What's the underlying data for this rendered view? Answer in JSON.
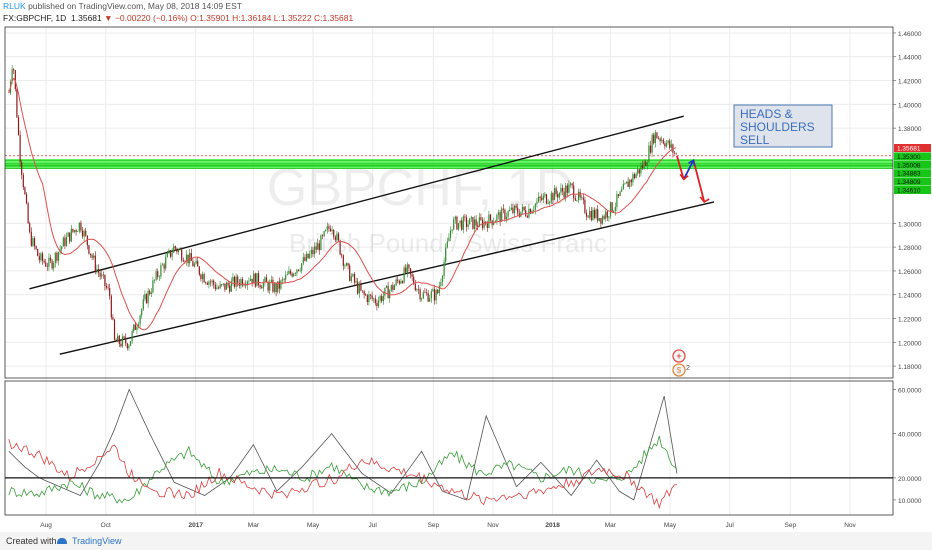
{
  "header": {
    "author": "RLUK",
    "published": "published on TradingView.com, May 08, 2018 14:09 EST",
    "symbol": "FX:GBPCHF, 1D",
    "price": "1.35681",
    "change": "−0.00220 (−0.16%)",
    "open": "O:1.35901",
    "high": "H:1.36184",
    "low": "L:1.35222",
    "close": "C:1.35681"
  },
  "watermark": {
    "ticker": "GBPCHF, 1D",
    "name": "British Pound / Swiss Franc"
  },
  "annotation": {
    "lines": [
      "HEADS &",
      "SHOULDERS",
      "SELL"
    ]
  },
  "badges": {
    "count": "2"
  },
  "footer": {
    "created_with": "Created with",
    "brand": "TradingView"
  },
  "colors": {
    "candle_up": "#2e8b2e",
    "candle_down": "#8b1a1a",
    "ma": "#e05050",
    "support_zone": "#33ee33",
    "price_label": "#e03030",
    "adx": "#555555",
    "di_plus": "#3aa03a",
    "di_minus": "#e04040"
  },
  "chart_data": [
    {
      "type": "candlestick",
      "title": "FX:GBPCHF, 1D",
      "x_tick_labels": [
        "Aug",
        "Oct",
        "2017",
        "Mar",
        "May",
        "Jul",
        "Sep",
        "Nov",
        "2018",
        "Mar",
        "May",
        "Jul",
        "Sep",
        "Nov"
      ],
      "y_tick_labels": [
        "1.18000",
        "1.20000",
        "1.22000",
        "1.24000",
        "1.26000",
        "1.28000",
        "1.30000",
        "1.38000",
        "1.40000",
        "1.42000",
        "1.44000",
        "1.46000"
      ],
      "ylim": [
        1.17,
        1.465
      ],
      "grid": true,
      "price_labels": [
        {
          "value": "1.35681",
          "kind": "last"
        },
        {
          "value": "1.35300",
          "kind": "level"
        },
        {
          "value": "1.35008",
          "kind": "level"
        },
        {
          "value": "1.34883",
          "kind": "level"
        },
        {
          "value": "1.34809",
          "kind": "level"
        },
        {
          "value": "1.34610",
          "kind": "level"
        }
      ],
      "support_levels": [
        1.353,
        1.35,
        1.3488,
        1.3481,
        1.3461
      ],
      "channel": {
        "upper": [
          {
            "x": "2016-07",
            "y": 1.245
          },
          {
            "x": "2018-05",
            "y": 1.39
          }
        ],
        "lower": [
          {
            "x": "2016-08",
            "y": 1.19
          },
          {
            "x": "2018-06",
            "y": 1.318
          }
        ]
      },
      "close_path": [
        {
          "x": "2016-06-24",
          "y": 1.41
        },
        {
          "x": "2016-06-28",
          "y": 1.44
        },
        {
          "x": "2016-07-05",
          "y": 1.36
        },
        {
          "x": "2016-07-15",
          "y": 1.29
        },
        {
          "x": "2016-07-25",
          "y": 1.27
        },
        {
          "x": "2016-08-05",
          "y": 1.265
        },
        {
          "x": "2016-08-20",
          "y": 1.285
        },
        {
          "x": "2016-09-05",
          "y": 1.3
        },
        {
          "x": "2016-09-20",
          "y": 1.265
        },
        {
          "x": "2016-10-05",
          "y": 1.24
        },
        {
          "x": "2016-10-10",
          "y": 1.2
        },
        {
          "x": "2016-10-25",
          "y": 1.2
        },
        {
          "x": "2016-11-10",
          "y": 1.235
        },
        {
          "x": "2016-11-25",
          "y": 1.26
        },
        {
          "x": "2016-12-10",
          "y": 1.28
        },
        {
          "x": "2016-12-25",
          "y": 1.27
        },
        {
          "x": "2017-01-10",
          "y": 1.255
        },
        {
          "x": "2017-01-25",
          "y": 1.245
        },
        {
          "x": "2017-02-10",
          "y": 1.25
        },
        {
          "x": "2017-02-25",
          "y": 1.255
        },
        {
          "x": "2017-03-10",
          "y": 1.25
        },
        {
          "x": "2017-03-25",
          "y": 1.245
        },
        {
          "x": "2017-04-10",
          "y": 1.26
        },
        {
          "x": "2017-04-25",
          "y": 1.27
        },
        {
          "x": "2017-05-10",
          "y": 1.285
        },
        {
          "x": "2017-05-20",
          "y": 1.3
        },
        {
          "x": "2017-06-05",
          "y": 1.26
        },
        {
          "x": "2017-06-20",
          "y": 1.24
        },
        {
          "x": "2017-07-05",
          "y": 1.235
        },
        {
          "x": "2017-07-20",
          "y": 1.245
        },
        {
          "x": "2017-08-05",
          "y": 1.26
        },
        {
          "x": "2017-08-20",
          "y": 1.24
        },
        {
          "x": "2017-09-05",
          "y": 1.24
        },
        {
          "x": "2017-09-20",
          "y": 1.3
        },
        {
          "x": "2017-10-05",
          "y": 1.3
        },
        {
          "x": "2017-10-20",
          "y": 1.3
        },
        {
          "x": "2017-11-05",
          "y": 1.305
        },
        {
          "x": "2017-11-20",
          "y": 1.31
        },
        {
          "x": "2017-12-05",
          "y": 1.31
        },
        {
          "x": "2017-12-20",
          "y": 1.32
        },
        {
          "x": "2018-01-05",
          "y": 1.325
        },
        {
          "x": "2018-01-20",
          "y": 1.33
        },
        {
          "x": "2018-02-05",
          "y": 1.31
        },
        {
          "x": "2018-02-20",
          "y": 1.305
        },
        {
          "x": "2018-03-05",
          "y": 1.315
        },
        {
          "x": "2018-03-20",
          "y": 1.335
        },
        {
          "x": "2018-04-05",
          "y": 1.35
        },
        {
          "x": "2018-04-15",
          "y": 1.375
        },
        {
          "x": "2018-04-25",
          "y": 1.37
        },
        {
          "x": "2018-05-08",
          "y": 1.3568
        }
      ],
      "projection": [
        {
          "x": "2018-05-08",
          "y": 1.3568
        },
        {
          "x": "2018-05-15",
          "y": 1.337
        },
        {
          "x": "2018-05-25",
          "y": 1.353
        },
        {
          "x": "2018-06-05",
          "y": 1.318
        }
      ]
    },
    {
      "type": "line",
      "title": "",
      "y_tick_labels": [
        "10.0000",
        "20.0000",
        "40.0000",
        "60.0000"
      ],
      "ylim": [
        5,
        62
      ],
      "reference_line": 20,
      "series": [
        {
          "color": "#555555",
          "points": [
            {
              "x": "2016-06-24",
              "y": 32
            },
            {
              "x": "2016-07-10",
              "y": 25
            },
            {
              "x": "2016-07-25",
              "y": 20
            },
            {
              "x": "2016-08-15",
              "y": 16
            },
            {
              "x": "2016-09-05",
              "y": 12
            },
            {
              "x": "2016-09-25",
              "y": 27
            },
            {
              "x": "2016-10-10",
              "y": 42
            },
            {
              "x": "2016-10-25",
              "y": 60
            },
            {
              "x": "2016-11-15",
              "y": 40
            },
            {
              "x": "2016-12-10",
              "y": 18
            },
            {
              "x": "2017-01-10",
              "y": 12
            },
            {
              "x": "2017-02-05",
              "y": 20
            },
            {
              "x": "2017-03-01",
              "y": 35
            },
            {
              "x": "2017-03-25",
              "y": 14
            },
            {
              "x": "2017-04-20",
              "y": 25
            },
            {
              "x": "2017-05-20",
              "y": 40
            },
            {
              "x": "2017-06-20",
              "y": 22
            },
            {
              "x": "2017-07-20",
              "y": 13
            },
            {
              "x": "2017-08-20",
              "y": 32
            },
            {
              "x": "2017-09-10",
              "y": 14
            },
            {
              "x": "2017-10-05",
              "y": 10
            },
            {
              "x": "2017-10-25",
              "y": 48
            },
            {
              "x": "2017-11-25",
              "y": 16
            },
            {
              "x": "2017-12-20",
              "y": 27
            },
            {
              "x": "2018-01-20",
              "y": 12
            },
            {
              "x": "2018-02-15",
              "y": 28
            },
            {
              "x": "2018-03-10",
              "y": 14
            },
            {
              "x": "2018-03-25",
              "y": 10
            },
            {
              "x": "2018-04-10",
              "y": 34
            },
            {
              "x": "2018-04-25",
              "y": 57
            },
            {
              "x": "2018-05-08",
              "y": 22
            }
          ]
        },
        {
          "color": "#3aa03a",
          "points": [
            {
              "x": "2016-06-24",
              "y": 14
            },
            {
              "x": "2016-07-25",
              "y": 13
            },
            {
              "x": "2016-08-25",
              "y": 18
            },
            {
              "x": "2016-09-25",
              "y": 12
            },
            {
              "x": "2016-10-25",
              "y": 10
            },
            {
              "x": "2016-11-25",
              "y": 24
            },
            {
              "x": "2016-12-25",
              "y": 32
            },
            {
              "x": "2017-01-25",
              "y": 18
            },
            {
              "x": "2017-02-25",
              "y": 22
            },
            {
              "x": "2017-03-25",
              "y": 24
            },
            {
              "x": "2017-04-25",
              "y": 20
            },
            {
              "x": "2017-05-20",
              "y": 26
            },
            {
              "x": "2017-06-20",
              "y": 16
            },
            {
              "x": "2017-07-20",
              "y": 14
            },
            {
              "x": "2017-08-20",
              "y": 18
            },
            {
              "x": "2017-09-20",
              "y": 31
            },
            {
              "x": "2017-10-20",
              "y": 22
            },
            {
              "x": "2017-11-20",
              "y": 26
            },
            {
              "x": "2017-12-20",
              "y": 20
            },
            {
              "x": "2018-01-20",
              "y": 24
            },
            {
              "x": "2018-02-20",
              "y": 18
            },
            {
              "x": "2018-03-20",
              "y": 22
            },
            {
              "x": "2018-04-20",
              "y": 38
            },
            {
              "x": "2018-05-08",
              "y": 24
            }
          ]
        },
        {
          "color": "#e04040",
          "points": [
            {
              "x": "2016-06-24",
              "y": 36
            },
            {
              "x": "2016-07-25",
              "y": 30
            },
            {
              "x": "2016-08-25",
              "y": 20
            },
            {
              "x": "2016-09-25",
              "y": 30
            },
            {
              "x": "2016-10-10",
              "y": 34
            },
            {
              "x": "2016-10-25",
              "y": 22
            },
            {
              "x": "2016-11-25",
              "y": 14
            },
            {
              "x": "2016-12-25",
              "y": 12
            },
            {
              "x": "2017-01-25",
              "y": 22
            },
            {
              "x": "2017-02-25",
              "y": 16
            },
            {
              "x": "2017-03-25",
              "y": 12
            },
            {
              "x": "2017-04-25",
              "y": 16
            },
            {
              "x": "2017-05-25",
              "y": 20
            },
            {
              "x": "2017-06-20",
              "y": 28
            },
            {
              "x": "2017-07-20",
              "y": 24
            },
            {
              "x": "2017-08-20",
              "y": 20
            },
            {
              "x": "2017-09-20",
              "y": 14
            },
            {
              "x": "2017-10-20",
              "y": 10
            },
            {
              "x": "2017-11-20",
              "y": 12
            },
            {
              "x": "2017-12-20",
              "y": 14
            },
            {
              "x": "2018-01-20",
              "y": 18
            },
            {
              "x": "2018-02-20",
              "y": 24
            },
            {
              "x": "2018-03-20",
              "y": 20
            },
            {
              "x": "2018-04-20",
              "y": 8
            },
            {
              "x": "2018-05-08",
              "y": 17
            }
          ]
        }
      ]
    }
  ]
}
